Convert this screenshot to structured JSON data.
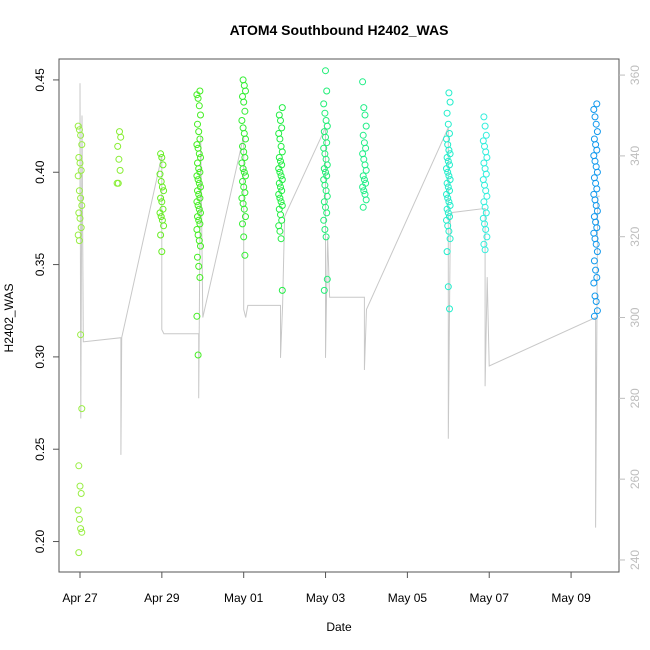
{
  "chart_data": {
    "type": "scatter",
    "title": "ATOM4 Southbound H2402_WAS",
    "xlabel": "Date",
    "ylabel": "H2402_WAS",
    "x_ticks": [
      "Apr 27",
      "Apr 29",
      "May 01",
      "May 03",
      "May 05",
      "May 07",
      "May 09"
    ],
    "y_ticks": [
      "0.20",
      "0.25",
      "0.30",
      "0.35",
      "0.40",
      "0.45"
    ],
    "y2_ticks": [
      "240",
      "260",
      "280",
      "300",
      "320",
      "340",
      "360"
    ],
    "xlim": [
      0,
      13
    ],
    "ylim": [
      0.19,
      0.457
    ],
    "y2lim": [
      239,
      362
    ],
    "grid": false,
    "point_series": [
      {
        "x": 0.0,
        "color": "#99ee44",
        "values": [
          0.425,
          0.423,
          0.42,
          0.415,
          0.408,
          0.405,
          0.401,
          0.398,
          0.39,
          0.386,
          0.382,
          0.378,
          0.375,
          0.37,
          0.366,
          0.363,
          0.312,
          0.272,
          0.241,
          0.23,
          0.226,
          0.217,
          0.212,
          0.207,
          0.205,
          0.194
        ]
      },
      {
        "x": 0.95,
        "color": "#88ee33",
        "values": [
          0.422,
          0.419,
          0.414,
          0.407,
          0.401,
          0.394,
          0.394
        ]
      },
      {
        "x": 2.0,
        "color": "#66ee22",
        "values": [
          0.41,
          0.408,
          0.404,
          0.399,
          0.395,
          0.392,
          0.39,
          0.386,
          0.384,
          0.38,
          0.378,
          0.376,
          0.374,
          0.371,
          0.366,
          0.357
        ]
      },
      {
        "x": 2.9,
        "color": "#44ee22",
        "values": [
          0.444,
          0.442,
          0.44,
          0.436,
          0.431,
          0.426,
          0.422,
          0.418,
          0.415,
          0.413,
          0.41,
          0.408,
          0.405,
          0.402,
          0.4,
          0.398,
          0.396,
          0.394,
          0.392,
          0.39,
          0.388,
          0.386,
          0.384,
          0.382,
          0.38,
          0.378,
          0.376,
          0.374,
          0.372,
          0.369,
          0.366,
          0.363,
          0.36,
          0.354,
          0.349,
          0.343,
          0.322,
          0.301
        ]
      },
      {
        "x": 4.0,
        "color": "#33ee33",
        "values": [
          0.45,
          0.447,
          0.444,
          0.441,
          0.438,
          0.433,
          0.428,
          0.424,
          0.421,
          0.418,
          0.414,
          0.411,
          0.408,
          0.405,
          0.402,
          0.4,
          0.398,
          0.395,
          0.392,
          0.389,
          0.386,
          0.383,
          0.38,
          0.376,
          0.372,
          0.365,
          0.355
        ]
      },
      {
        "x": 4.9,
        "color": "#22ee44",
        "values": [
          0.435,
          0.431,
          0.428,
          0.424,
          0.421,
          0.418,
          0.414,
          0.411,
          0.408,
          0.406,
          0.404,
          0.402,
          0.4,
          0.398,
          0.396,
          0.394,
          0.392,
          0.39,
          0.388,
          0.386,
          0.384,
          0.382,
          0.38,
          0.377,
          0.374,
          0.371,
          0.368,
          0.364,
          0.336
        ]
      },
      {
        "x": 6.0,
        "color": "#22ee77",
        "values": [
          0.455,
          0.444,
          0.437,
          0.432,
          0.428,
          0.425,
          0.422,
          0.419,
          0.416,
          0.413,
          0.41,
          0.407,
          0.404,
          0.402,
          0.4,
          0.398,
          0.396,
          0.393,
          0.39,
          0.387,
          0.384,
          0.381,
          0.378,
          0.374,
          0.369,
          0.365,
          0.342,
          0.336
        ]
      },
      {
        "x": 6.95,
        "color": "#22ee88",
        "values": [
          0.449,
          0.435,
          0.431,
          0.425,
          0.42,
          0.416,
          0.413,
          0.41,
          0.407,
          0.404,
          0.401,
          0.398,
          0.396,
          0.394,
          0.392,
          0.39,
          0.388,
          0.385,
          0.381
        ]
      },
      {
        "x": 9.0,
        "color": "#22eecc",
        "values": [
          0.443,
          0.438,
          0.432,
          0.426,
          0.421,
          0.418,
          0.415,
          0.412,
          0.41,
          0.408,
          0.406,
          0.404,
          0.402,
          0.4,
          0.398,
          0.396,
          0.394,
          0.392,
          0.39,
          0.388,
          0.386,
          0.384,
          0.382,
          0.38,
          0.378,
          0.376,
          0.374,
          0.371,
          0.368,
          0.364,
          0.357,
          0.338,
          0.326
        ]
      },
      {
        "x": 9.9,
        "color": "#33eedd",
        "values": [
          0.43,
          0.425,
          0.42,
          0.417,
          0.414,
          0.411,
          0.408,
          0.405,
          0.402,
          0.399,
          0.396,
          0.393,
          0.39,
          0.387,
          0.384,
          0.381,
          0.378,
          0.375,
          0.372,
          0.369,
          0.365,
          0.361,
          0.358
        ]
      },
      {
        "x": 12.6,
        "color": "#1199ee",
        "values": [
          0.437,
          0.434,
          0.43,
          0.426,
          0.422,
          0.418,
          0.415,
          0.412,
          0.409,
          0.406,
          0.403,
          0.4,
          0.397,
          0.394,
          0.391,
          0.388,
          0.385,
          0.382,
          0.379,
          0.376,
          0.373,
          0.37,
          0.367,
          0.364,
          0.361,
          0.357,
          0.352,
          0.347,
          0.343,
          0.34,
          0.333,
          0.33,
          0.325,
          0.322
        ]
      }
    ],
    "overlay_line": {
      "color": "#c8c8c8",
      "axis": "right",
      "x": [
        0.0,
        0.0,
        0.02,
        0.05,
        0.08,
        0.1,
        1.0,
        1.0,
        1.02,
        2.0,
        2.0,
        2.05,
        2.1,
        2.9,
        2.9,
        2.95,
        3.0,
        4.0,
        4.0,
        4.05,
        4.1,
        4.9,
        4.9,
        4.95,
        5.0,
        6.0,
        6.0,
        6.05,
        6.1,
        6.95,
        6.95,
        7.0,
        9.0,
        9.0,
        9.05,
        9.1,
        9.9,
        9.9,
        9.95,
        10.0,
        12.6,
        12.6,
        12.65,
        12.7
      ],
      "values": [
        330,
        358,
        275,
        350,
        294,
        294,
        295,
        266,
        295,
        340,
        297,
        296,
        296,
        296,
        280,
        345,
        300,
        345,
        302,
        300,
        303,
        303,
        290,
        303,
        325,
        347,
        290,
        320,
        305,
        305,
        287,
        302,
        347,
        270,
        325,
        326,
        327,
        283,
        310,
        288,
        300,
        248,
        330,
        330
      ]
    },
    "legend": "none"
  }
}
